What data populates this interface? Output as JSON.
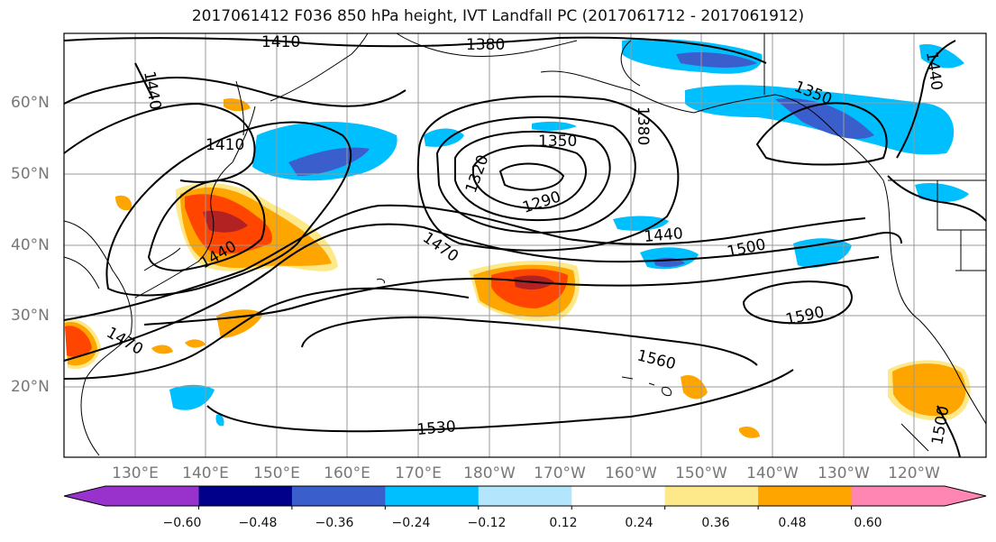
{
  "title": "2017061412 F036 850 hPa height, IVT Landfall PC (2017061712 - 2017061912)",
  "lat_labels": [
    "60°N",
    "50°N",
    "40°N",
    "30°N",
    "20°N"
  ],
  "lon_labels": [
    "130°E",
    "140°E",
    "150°E",
    "160°E",
    "170°E",
    "180°W",
    "170°W",
    "160°W",
    "150°W",
    "140°W",
    "130°W",
    "120°W"
  ],
  "contour_labels": [
    "1410",
    "1380",
    "1440",
    "1410",
    "1350",
    "1380",
    "1350",
    "1320",
    "1290",
    "1440",
    "1470",
    "1500",
    "1440",
    "1470",
    "1590",
    "1560",
    "1530",
    "1500",
    "1440"
  ],
  "colorbar": {
    "ticks": [
      "−0.60",
      "−0.48",
      "−0.36",
      "−0.24",
      "−0.12",
      "0.12",
      "0.24",
      "0.36",
      "0.48",
      "0.60"
    ],
    "colors": [
      "#9932cc",
      "#00008b",
      "#3a5fcd",
      "#00bfff",
      "#b3e5fc",
      "#ffffff",
      "#fde98a",
      "#ffa500",
      "#ff4500",
      "#b22222",
      "#ff85b3"
    ]
  },
  "colors": {
    "neg_light": "#00bfff",
    "neg_mid": "#3a5fcd",
    "pos_light": "#fde98a",
    "pos_orange": "#ffa500",
    "pos_red": "#ff4500",
    "pos_dark": "#b22222"
  }
}
